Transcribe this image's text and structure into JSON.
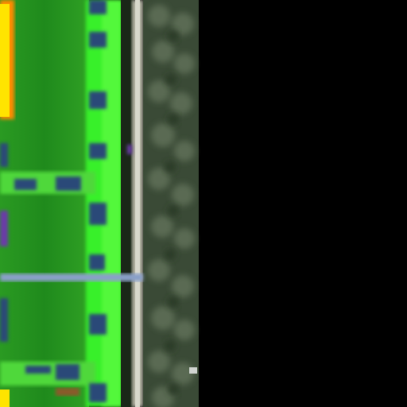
{
  "image": {
    "kind": "false-color aerial photograph",
    "colors": {
      "background": "#000000",
      "field_green": "#1f8a1c",
      "field_green_light": "#4fd83a",
      "strip_bright_green": "#37f02a",
      "highlight_yellow": "#ffe400",
      "highlight_orange": "#ff8a00",
      "road_dark": "#1a2618",
      "road_edge_grey": "#b8b8a8",
      "tree_canopy": "#4a5a44",
      "tree_canopy_dark": "#2b3a28",
      "cross_road_blue_grey": "#8aa0c8",
      "blue_patch": "#2a4a78",
      "purple_patch": "#6a3aa8"
    }
  }
}
